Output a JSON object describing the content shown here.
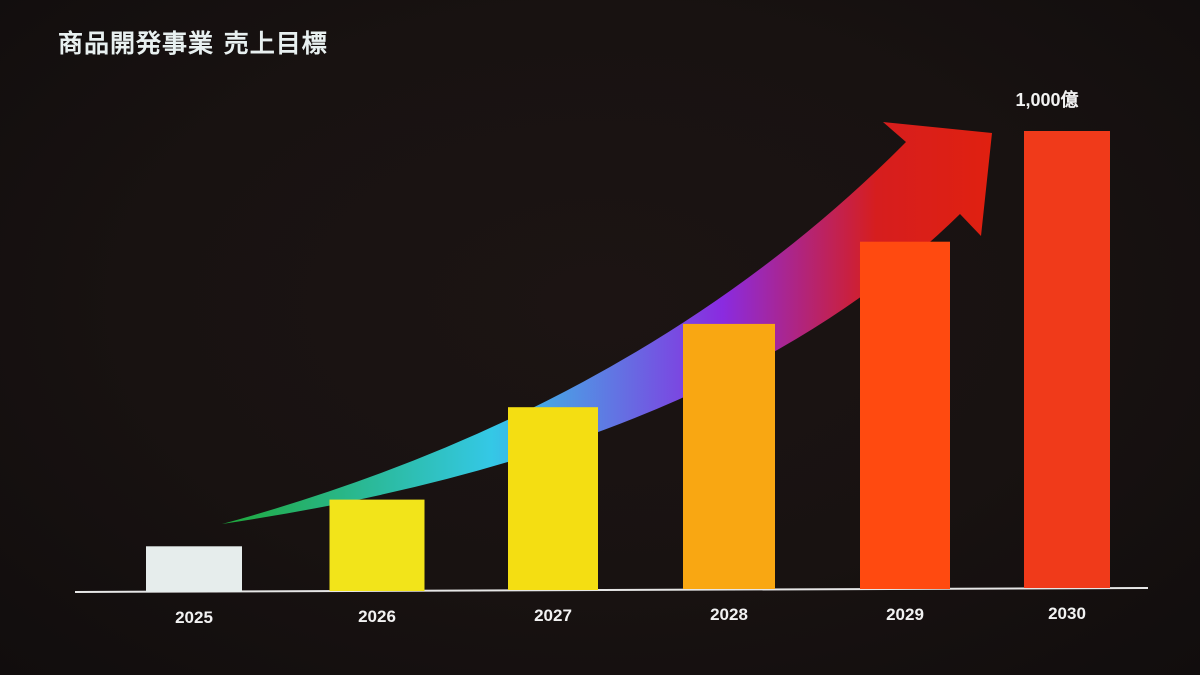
{
  "title": "商品開発事業 売上目標",
  "chart_data": {
    "type": "bar",
    "title": "商品開発事業 売上目標",
    "xlabel": "",
    "ylabel": "",
    "categories": [
      "2025",
      "2026",
      "2027",
      "2028",
      "2029",
      "2030"
    ],
    "values": [
      100,
      200,
      400,
      580,
      760,
      1000
    ],
    "ylim": [
      0,
      1000
    ],
    "grid": false,
    "legend": "none",
    "annotations": [
      {
        "category": "2030",
        "text": "1,000億"
      }
    ],
    "bar_colors": [
      "#e6edec",
      "#f2e41a",
      "#f4de12",
      "#f9a712",
      "#ff4a10",
      "#f03a1a"
    ],
    "arrow_colors": [
      "#1fa83a",
      "#34c8e6",
      "#8a2be0",
      "#d61e1e"
    ]
  }
}
